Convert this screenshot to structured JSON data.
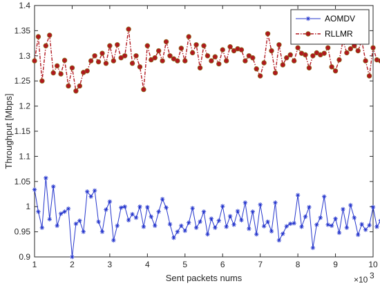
{
  "chart_data": {
    "type": "line",
    "xlabel": "Sent packets nums",
    "ylabel": "Throughput [Mbps]",
    "x_multiplier_label": "×10",
    "x_multiplier_exp": "3",
    "xlim": [
      1,
      10
    ],
    "ylim": [
      0.9,
      1.4
    ],
    "xticks": [
      "1",
      "2",
      "3",
      "4",
      "5",
      "6",
      "7",
      "8",
      "9",
      "10"
    ],
    "yticks": [
      "0.9",
      "0.95",
      "1",
      "1.05",
      "1.1",
      "1.15",
      "1.2",
      "1.25",
      "1.3",
      "1.35",
      "1.4"
    ],
    "grid": false,
    "legend_position": "top-right",
    "x_start": 1.0,
    "x_step": 0.1,
    "series": [
      {
        "name": "AOMDV",
        "color": "#2233cc",
        "marker": "asterisk",
        "line_style": "solid",
        "values": [
          1.034,
          0.99,
          0.958,
          1.057,
          0.975,
          1.04,
          0.962,
          0.986,
          0.99,
          0.996,
          0.9,
          0.966,
          0.972,
          0.95,
          1.03,
          1.02,
          1.032,
          0.97,
          0.95,
          0.994,
          1.01,
          0.933,
          0.962,
          0.998,
          1.0,
          0.973,
          0.985,
          0.978,
          1.0,
          0.96,
          0.999,
          0.98,
          0.962,
          0.99,
          1.015,
          0.998,
          0.965,
          0.938,
          0.95,
          0.962,
          0.952,
          0.968,
          0.997,
          0.958,
          0.97,
          0.99,
          0.945,
          0.976,
          0.958,
          0.972,
          1.001,
          0.96,
          0.981,
          0.964,
          0.991,
          0.973,
          1.008,
          0.956,
          0.99,
          0.945,
          1.004,
          0.961,
          0.97,
          0.951,
          1.008,
          0.933,
          0.946,
          0.961,
          0.966,
          0.967,
          1.023,
          0.96,
          0.98,
          0.999,
          0.918,
          0.964,
          0.978,
          1.02,
          0.964,
          0.962,
          0.976,
          0.948,
          0.995,
          0.958,
          1.003,
          0.978,
          0.944,
          0.965,
          0.954,
          0.963,
          0.999,
          0.96,
          0.972,
          0.95,
          0.985,
          0.972,
          0.921,
          0.99,
          0.96,
          0.975,
          0.96
        ]
      },
      {
        "name": "RLLMR",
        "color": "#b0171f",
        "marker": "circle",
        "line_style": "dash-dot",
        "values": [
          1.29,
          1.338,
          1.25,
          1.32,
          1.341,
          1.266,
          1.28,
          1.264,
          1.291,
          1.24,
          1.276,
          1.23,
          1.24,
          1.267,
          1.27,
          1.29,
          1.3,
          1.288,
          1.305,
          1.285,
          1.32,
          1.29,
          1.322,
          1.296,
          1.3,
          1.353,
          1.285,
          1.3,
          1.278,
          1.233,
          1.32,
          1.292,
          1.296,
          1.31,
          1.29,
          1.328,
          1.3,
          1.294,
          1.29,
          1.315,
          1.29,
          1.338,
          1.306,
          1.322,
          1.276,
          1.32,
          1.3,
          1.29,
          1.298,
          1.284,
          1.312,
          1.29,
          1.318,
          1.31,
          1.314,
          1.312,
          1.29,
          1.3,
          1.296,
          1.274,
          1.26,
          1.286,
          1.344,
          1.31,
          1.266,
          1.322,
          1.282,
          1.296,
          1.302,
          1.29,
          1.316,
          1.305,
          1.302,
          1.276,
          1.3,
          1.306,
          1.302,
          1.305,
          1.316,
          1.278,
          1.27,
          1.292,
          1.33,
          1.306,
          1.314,
          1.32,
          1.31,
          1.33,
          1.29,
          1.26,
          1.316,
          1.292,
          1.29,
          1.296,
          1.304,
          1.29,
          1.32,
          1.264,
          1.322,
          1.27,
          1.276
        ]
      }
    ]
  }
}
